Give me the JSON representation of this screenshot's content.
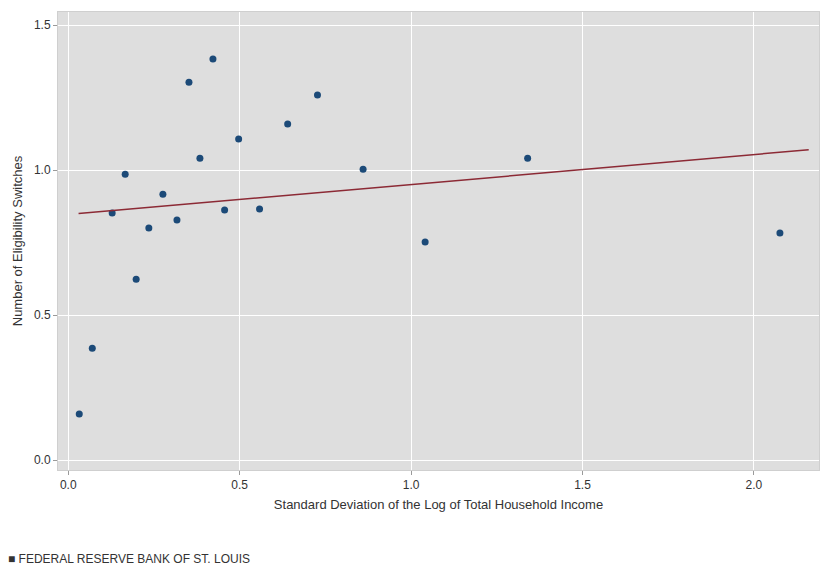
{
  "chart_data": {
    "type": "scatter",
    "x_label": "Standard Deviation of the Log of Total Household Income",
    "y_label": "Number of Eligibility Switches",
    "source": "■ FEDERAL RESERVE BANK OF ST. LOUIS",
    "xlim": [
      -0.03,
      2.19
    ],
    "ylim": [
      -0.034,
      1.545
    ],
    "xticks": [
      {
        "value": 0,
        "label": "0.0"
      },
      0.5,
      {
        "value": 1,
        "label": "1.0"
      },
      1.5,
      {
        "value": 2,
        "label": "2.0"
      }
    ],
    "yticks": [
      {
        "value": 0,
        "label": "0.0"
      },
      0.5,
      {
        "value": 1,
        "label": "1.0"
      },
      1.5
    ],
    "grid": true,
    "series": [
      {
        "type": "scatter",
        "marker": "circle",
        "color": "#1c4a78",
        "x": [
          0.032,
          0.07,
          0.128,
          0.166,
          0.198,
          0.235,
          0.276,
          0.317,
          0.352,
          0.384,
          0.422,
          0.456,
          0.497,
          0.558,
          0.64,
          0.727,
          0.86,
          1.041,
          1.34,
          2.076
        ],
        "values": [
          0.159,
          0.386,
          0.852,
          0.986,
          0.624,
          0.8,
          0.917,
          0.828,
          1.303,
          1.041,
          1.383,
          0.862,
          1.107,
          0.866,
          1.159,
          1.259,
          1.003,
          0.752,
          1.041,
          0.783
        ]
      },
      {
        "type": "line",
        "line_style": "solid",
        "color": "#8c2a35",
        "x": [
          0.03,
          2.16
        ],
        "values": [
          0.85,
          1.07
        ]
      }
    ]
  }
}
